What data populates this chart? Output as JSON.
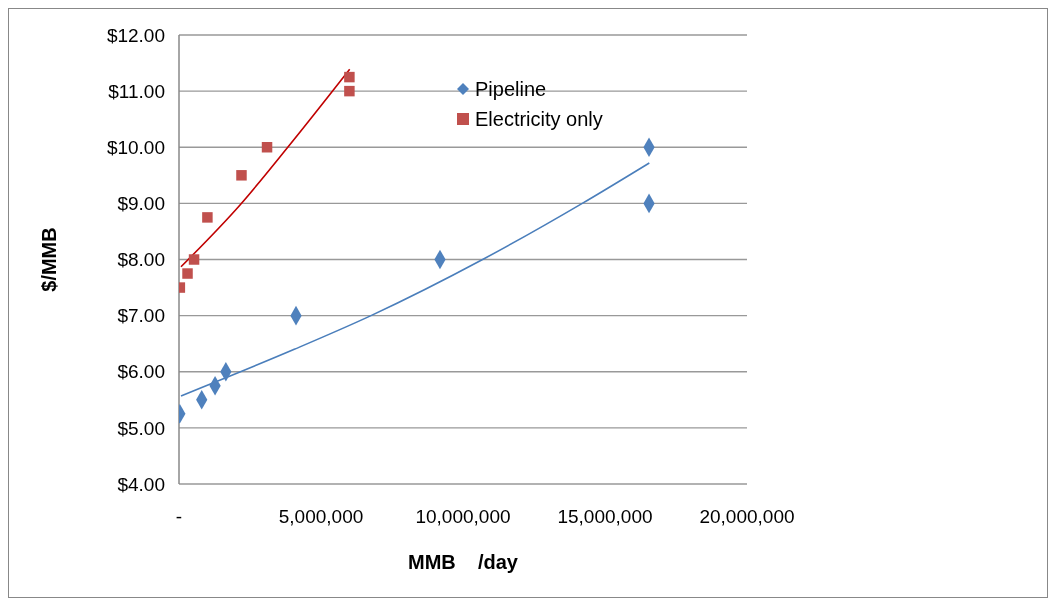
{
  "chart_data": {
    "type": "scatter",
    "xlabel": "MMB    /day",
    "ylabel": "$/MMB",
    "xlim": [
      0,
      20000000
    ],
    "xticks": [
      {
        "value": 0,
        "label": "-"
      },
      {
        "value": 5000000,
        "label": "5,000,000"
      },
      {
        "value": 10000000,
        "label": "10,000,000"
      },
      {
        "value": 15000000,
        "label": "15,000,000"
      },
      {
        "value": 20000000,
        "label": "20,000,000"
      }
    ],
    "ylim": [
      4,
      12
    ],
    "yticks": [
      {
        "value": 4,
        "label": "$4.00"
      },
      {
        "value": 5,
        "label": "$5.00"
      },
      {
        "value": 6,
        "label": "$6.00"
      },
      {
        "value": 7,
        "label": "$7.00"
      },
      {
        "value": 8,
        "label": "$8.00"
      },
      {
        "value": 9,
        "label": "$9.00"
      },
      {
        "value": 10,
        "label": "$10.00"
      },
      {
        "value": 11,
        "label": "$11.00"
      },
      {
        "value": 12,
        "label": "$12.00"
      }
    ],
    "grid": "y",
    "legend": "top right",
    "series": [
      {
        "name": "Pipeline",
        "marker": "diamond",
        "color": "#4f81bd",
        "x": [
          30000,
          800000,
          1270000,
          1650000,
          4120000,
          9190000,
          16550000,
          16550000
        ],
        "values": [
          5.25,
          5.5,
          5.75,
          6.0,
          7.0,
          8.0,
          9.0,
          10.0
        ]
      },
      {
        "name": "Electricity only",
        "marker": "square",
        "color": "#c0504d",
        "x": [
          30000,
          300000,
          530000,
          1000000,
          2200000,
          3100000,
          6000000,
          6000000
        ],
        "values": [
          7.5,
          7.75,
          8.0,
          8.75,
          9.5,
          10.0,
          11.0,
          11.25
        ]
      },
      {
        "type": "line",
        "marker": "none",
        "color": "#4a7ebb",
        "x": [
          70000,
          4060000,
          6760000,
          10690000,
          14200000,
          16560000
        ],
        "values": [
          5.57,
          6.4,
          7.0,
          8.0,
          9.0,
          9.72
        ]
      },
      {
        "type": "line",
        "marker": "none",
        "color": "#c00000",
        "x": [
          70000,
          2180000,
          3830000,
          6010000
        ],
        "values": [
          7.87,
          8.99,
          10.0,
          11.39
        ]
      }
    ]
  }
}
